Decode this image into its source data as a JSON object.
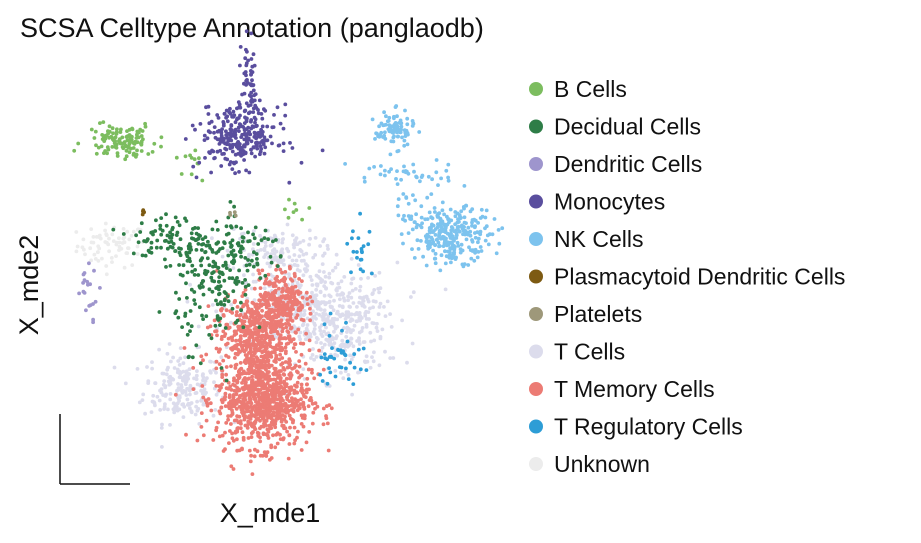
{
  "chart_data": {
    "type": "scatter",
    "title": "SCSA Celltype Annotation (panglaodb)",
    "xlabel": "X_mde1",
    "ylabel": "X_mde2",
    "ticks": "none",
    "grid": false,
    "legend_position": "right",
    "embedding_axes": "X_mde1 / X_mde2 (arbitrary embedding units, no tick labels)",
    "series": [
      {
        "name": "B Cells",
        "color": "#7cbd5f",
        "count": 140,
        "clusters": [
          [
            -0.93,
            0.78,
            0.09,
            0.04,
            120
          ],
          [
            -0.55,
            0.69,
            0.05,
            0.04,
            12
          ],
          [
            -0.05,
            0.46,
            0.03,
            0.02,
            8
          ]
        ]
      },
      {
        "name": "Decidual Cells",
        "color": "#2e7d47",
        "count": 320,
        "clusters": [
          [
            -0.68,
            0.32,
            0.1,
            0.06,
            90
          ],
          [
            -0.45,
            0.12,
            0.1,
            0.14,
            160
          ],
          [
            -0.3,
            0.28,
            0.12,
            0.06,
            70
          ]
        ]
      },
      {
        "name": "Dendritic Cells",
        "color": "#9e95cd",
        "count": 20,
        "clusters": [
          [
            -1.1,
            0.1,
            0.03,
            0.06,
            20
          ]
        ]
      },
      {
        "name": "Monocytes",
        "color": "#5a4e9e",
        "count": 330,
        "clusters": [
          [
            -0.32,
            0.8,
            0.1,
            0.07,
            280
          ],
          [
            -0.27,
            1.05,
            0.02,
            0.1,
            50
          ]
        ]
      },
      {
        "name": "NK Cells",
        "color": "#7dc3ee",
        "count": 420,
        "clusters": [
          [
            0.48,
            0.83,
            0.05,
            0.04,
            90
          ],
          [
            0.52,
            0.62,
            0.14,
            0.04,
            40
          ],
          [
            0.78,
            0.35,
            0.1,
            0.06,
            270
          ],
          [
            0.55,
            0.45,
            0.04,
            0.05,
            20
          ]
        ]
      },
      {
        "name": "Plasmacytoid Dendritic Cells",
        "color": "#7d5a12",
        "count": 4,
        "clusters": [
          [
            -0.82,
            0.45,
            0.01,
            0.01,
            4
          ]
        ]
      },
      {
        "name": "Platelets",
        "color": "#9e987a",
        "count": 4,
        "clusters": [
          [
            -0.36,
            0.45,
            0.01,
            0.01,
            4
          ]
        ]
      },
      {
        "name": "T Cells",
        "color": "#dcdcec",
        "count": 900,
        "clusters": [
          [
            -0.62,
            -0.35,
            0.1,
            0.08,
            200
          ],
          [
            0.05,
            0.02,
            0.22,
            0.1,
            420
          ],
          [
            -0.15,
            0.28,
            0.12,
            0.05,
            120
          ],
          [
            0.2,
            -0.12,
            0.12,
            0.1,
            160
          ]
        ]
      },
      {
        "name": "T Memory Cells",
        "color": "#ec7b74",
        "count": 1600,
        "clusters": [
          [
            -0.2,
            -0.4,
            0.12,
            0.11,
            900
          ],
          [
            -0.24,
            -0.1,
            0.1,
            0.08,
            450
          ],
          [
            -0.1,
            0.06,
            0.06,
            0.06,
            250
          ]
        ]
      },
      {
        "name": "T Regulatory Cells",
        "color": "#2d9dd6",
        "count": 60,
        "clusters": [
          [
            0.3,
            0.3,
            0.03,
            0.08,
            20
          ],
          [
            0.2,
            -0.2,
            0.06,
            0.08,
            40
          ]
        ]
      },
      {
        "name": "Unknown",
        "color": "#ececec",
        "count": 70,
        "clusters": [
          [
            -0.98,
            0.3,
            0.09,
            0.05,
            70
          ]
        ]
      }
    ],
    "xlim": [
      -1.25,
      1.0
    ],
    "ylim": [
      -0.75,
      1.15
    ]
  }
}
